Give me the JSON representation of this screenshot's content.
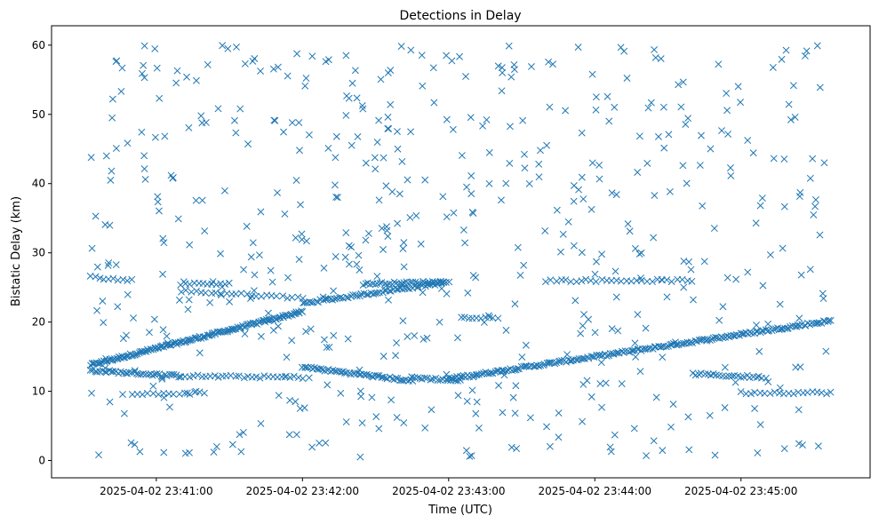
{
  "chart_data": {
    "type": "scatter",
    "title": "Detections in Delay",
    "xlabel": "Time (UTC)",
    "ylabel": "Bistatic Delay (km)",
    "marker": "x",
    "color": "#1f77b4",
    "grid": false,
    "legend": false,
    "x_range": [
      "2025-04-02 23:40:33",
      "2025-04-02 23:45:37"
    ],
    "xlim": [
      "2025-04-02 23:40:17",
      "2025-04-02 23:45:53"
    ],
    "ylim": [
      -2.5,
      62.8
    ],
    "x_ticks": [
      "2025-04-02 23:41:00",
      "2025-04-02 23:42:00",
      "2025-04-02 23:43:00",
      "2025-04-02 23:44:00",
      "2025-04-02 23:45:00"
    ],
    "y_ticks": [
      0,
      10,
      20,
      30,
      40,
      50,
      60
    ],
    "series": [
      {
        "type": "linear_track",
        "x_start": "2025-04-02 23:40:33",
        "x_end": "2025-04-02 23:42:00",
        "y_start": 13.8,
        "y_end": 21.5,
        "count": 150
      },
      {
        "type": "linear_track",
        "x_start": "2025-04-02 23:42:00",
        "x_end": "2025-04-02 23:43:00",
        "y_start": 22.7,
        "y_end": 25.8,
        "count": 65
      },
      {
        "type": "linear_track",
        "x_start": "2025-04-02 23:43:00",
        "x_end": "2025-04-02 23:45:37",
        "y_start": 11.8,
        "y_end": 20.2,
        "count": 200
      },
      {
        "type": "linear_track",
        "x_start": "2025-04-02 23:40:33",
        "x_end": "2025-04-02 23:41:10",
        "y_start": 13.0,
        "y_end": 12.2,
        "count": 40
      },
      {
        "type": "linear_track",
        "x_start": "2025-04-02 23:41:10",
        "x_end": "2025-04-02 23:42:00",
        "y_start": 12.2,
        "y_end": 12.0,
        "count": 30
      },
      {
        "type": "linear_track",
        "x_start": "2025-04-02 23:42:00",
        "x_end": "2025-04-02 23:42:45",
        "y_start": 13.5,
        "y_end": 11.5,
        "count": 55
      },
      {
        "type": "linear_track",
        "x_start": "2025-04-02 23:42:45",
        "x_end": "2025-04-02 23:43:05",
        "y_start": 12.0,
        "y_end": 11.5,
        "count": 20
      },
      {
        "type": "linear_track",
        "x_start": "2025-04-02 23:41:10",
        "x_end": "2025-04-02 23:42:00",
        "y_start": 24.5,
        "y_end": 23.5,
        "count": 25
      },
      {
        "type": "linear_track",
        "x_start": "2025-04-02 23:42:25",
        "x_end": "2025-04-02 23:42:58",
        "y_start": 25.5,
        "y_end": 25.8,
        "count": 35
      },
      {
        "type": "linear_track",
        "x_start": "2025-04-02 23:43:40",
        "x_end": "2025-04-02 23:44:40",
        "y_start": 26.0,
        "y_end": 26.0,
        "count": 30
      },
      {
        "type": "linear_track",
        "x_start": "2025-04-02 23:44:40",
        "x_end": "2025-04-02 23:45:10",
        "y_start": 12.5,
        "y_end": 12.0,
        "count": 25
      },
      {
        "type": "linear_track",
        "x_start": "2025-04-02 23:45:00",
        "x_end": "2025-04-02 23:45:37",
        "y_start": 9.8,
        "y_end": 9.8,
        "count": 20
      },
      {
        "type": "linear_track",
        "x_start": "2025-04-02 23:40:50",
        "x_end": "2025-04-02 23:41:20",
        "y_start": 9.5,
        "y_end": 9.8,
        "count": 15
      },
      {
        "type": "linear_track",
        "x_start": "2025-04-02 23:43:05",
        "x_end": "2025-04-02 23:43:20",
        "y_start": 20.6,
        "y_end": 20.6,
        "count": 10
      },
      {
        "type": "linear_track",
        "x_start": "2025-04-02 23:41:10",
        "x_end": "2025-04-02 23:41:30",
        "y_start": 25.5,
        "y_end": 25.5,
        "count": 12
      },
      {
        "type": "linear_track",
        "x_start": "2025-04-02 23:40:33",
        "x_end": "2025-04-02 23:40:50",
        "y_start": 26.5,
        "y_end": 26.0,
        "count": 10
      },
      {
        "type": "random_scatter",
        "x_start": "2025-04-02 23:40:33",
        "x_end": "2025-04-02 23:45:37",
        "y_min": 0.5,
        "y_max": 60,
        "count": 560,
        "seed": 7
      }
    ]
  }
}
